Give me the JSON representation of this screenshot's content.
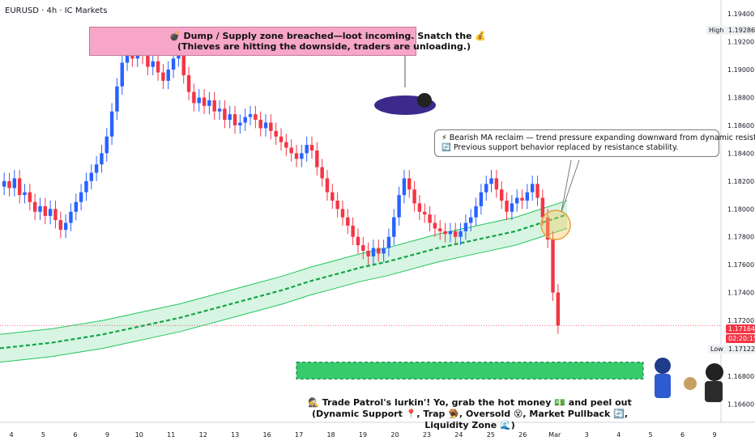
{
  "header": {
    "title": "EURUSD · 4h · IC Markets"
  },
  "annotations": {
    "supply_zone": {
      "line1": "💣 Dump / Supply zone breached—loot incoming. Snatch the 💰",
      "line2": "(Thieves are hitting the downside, traders are unloading.)"
    },
    "ma_note": {
      "line1": "⚡ Bearish MA reclaim — trend pressure expanding downward from dynamic resistance.",
      "line2": "🔄 Previous support behavior replaced by resistance stability."
    },
    "bottom": {
      "line1": "🕵 Trade Patrol's lurkin'! Yo, grab the hot money 💵 and peel out",
      "line2": "(Dynamic Support 📍, Trap 🪤, Oversold 😵, Market Pullback 🔄, Liquidity Zone 🌊)"
    }
  },
  "price_tags": {
    "high_label": "High",
    "high_value": "1.19286",
    "current_value": "1.17164",
    "countdown": "02:20:15",
    "low_label": "Low",
    "low_value": "1.17122"
  },
  "colors": {
    "bull": "#2962ff",
    "bear": "#f23645",
    "ma": "#22c55e",
    "zone": "#22c55e",
    "supply": "#f7a6c8"
  },
  "chart_data": {
    "type": "candlestick",
    "title": "EURUSD · 4h · IC Markets",
    "ylim": [
      1.1648,
      1.195
    ],
    "y_ticks": [
      "1.19400",
      "1.19200",
      "1.19000",
      "1.18800",
      "1.18600",
      "1.18400",
      "1.18200",
      "1.18000",
      "1.17800",
      "1.17600",
      "1.17400",
      "1.17200",
      "1.17000",
      "1.16800",
      "1.16600"
    ],
    "x_ticks": [
      "4",
      "5",
      "6",
      "9",
      "10",
      "11",
      "12",
      "13",
      "16",
      "17",
      "18",
      "19",
      "20",
      "23",
      "24",
      "25",
      "26",
      "Mar",
      "3",
      "4",
      "5",
      "6",
      "9"
    ],
    "close_series": [
      1.182,
      1.1815,
      1.1822,
      1.181,
      1.1812,
      1.1805,
      1.1798,
      1.1802,
      1.1795,
      1.18,
      1.1792,
      1.1785,
      1.179,
      1.1798,
      1.1805,
      1.1812,
      1.182,
      1.1826,
      1.1832,
      1.184,
      1.1852,
      1.187,
      1.1888,
      1.1905,
      1.1912,
      1.1908,
      1.1915,
      1.191,
      1.1902,
      1.1906,
      1.1898,
      1.1892,
      1.19,
      1.1908,
      1.1915,
      1.1896,
      1.1884,
      1.1876,
      1.188,
      1.1874,
      1.1878,
      1.187,
      1.1872,
      1.1864,
      1.1868,
      1.186,
      1.1862,
      1.1866,
      1.1868,
      1.1864,
      1.1858,
      1.1862,
      1.1856,
      1.1852,
      1.1848,
      1.1844,
      1.184,
      1.1836,
      1.184,
      1.1846,
      1.1842,
      1.183,
      1.1822,
      1.1812,
      1.1806,
      1.18,
      1.1794,
      1.1788,
      1.178,
      1.1774,
      1.177,
      1.1766,
      1.1772,
      1.1768,
      1.1772,
      1.178,
      1.1794,
      1.181,
      1.1822,
      1.1814,
      1.1804,
      1.1798,
      1.1796,
      1.179,
      1.1786,
      1.1784,
      1.1782,
      1.1784,
      1.178,
      1.1784,
      1.179,
      1.1794,
      1.1802,
      1.1812,
      1.1818,
      1.1822,
      1.1814,
      1.1806,
      1.1798,
      1.1804,
      1.1808,
      1.1806,
      1.1812,
      1.1818,
      1.1808,
      1.1794,
      1.1778,
      1.174,
      1.17164
    ],
    "ma_series": [
      1.17,
      1.1702,
      1.1704,
      1.1707,
      1.171,
      1.1714,
      1.1718,
      1.1722,
      1.1727,
      1.1732,
      1.1737,
      1.1742,
      1.1748,
      1.1753,
      1.1758,
      1.1762,
      1.1767,
      1.1772,
      1.1776,
      1.178,
      1.1784,
      1.179,
      1.1796
    ],
    "supply_zone": [
      1.192,
      1.1938
    ],
    "demand_zone": [
      1.1678,
      1.169
    ]
  }
}
